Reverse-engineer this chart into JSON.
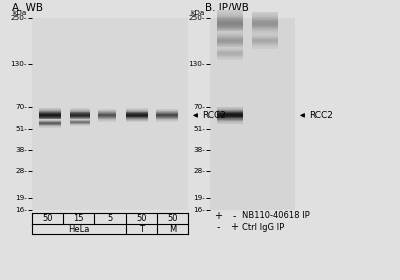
{
  "fig_w": 4.0,
  "fig_h": 2.8,
  "dpi": 100,
  "bg_color": "#e0e0e0",
  "gel_color_a": "#d4d4d4",
  "gel_color_b": "#d0d0d0",
  "panel_A_title": "A. WB",
  "panel_B_title": "B. IP/WB",
  "kda_label": "kDa",
  "markers_kda": [
    250,
    130,
    70,
    51,
    38,
    28,
    19,
    16
  ],
  "markers_labels": [
    "250-",
    "130-",
    "70-",
    "51-",
    "38-",
    "28-",
    "19-",
    "16-"
  ],
  "rcc2_arrow_label": "←RCC2",
  "table_values": [
    "50",
    "15",
    "5",
    "50",
    "50"
  ],
  "table_row2": [
    "HeLa",
    "T",
    "M"
  ],
  "legend_col1": [
    "+",
    "-"
  ],
  "legend_col2": [
    "-",
    "+"
  ],
  "legend_labels": [
    "NB110-40618 IP",
    "Ctrl IgG IP"
  ]
}
